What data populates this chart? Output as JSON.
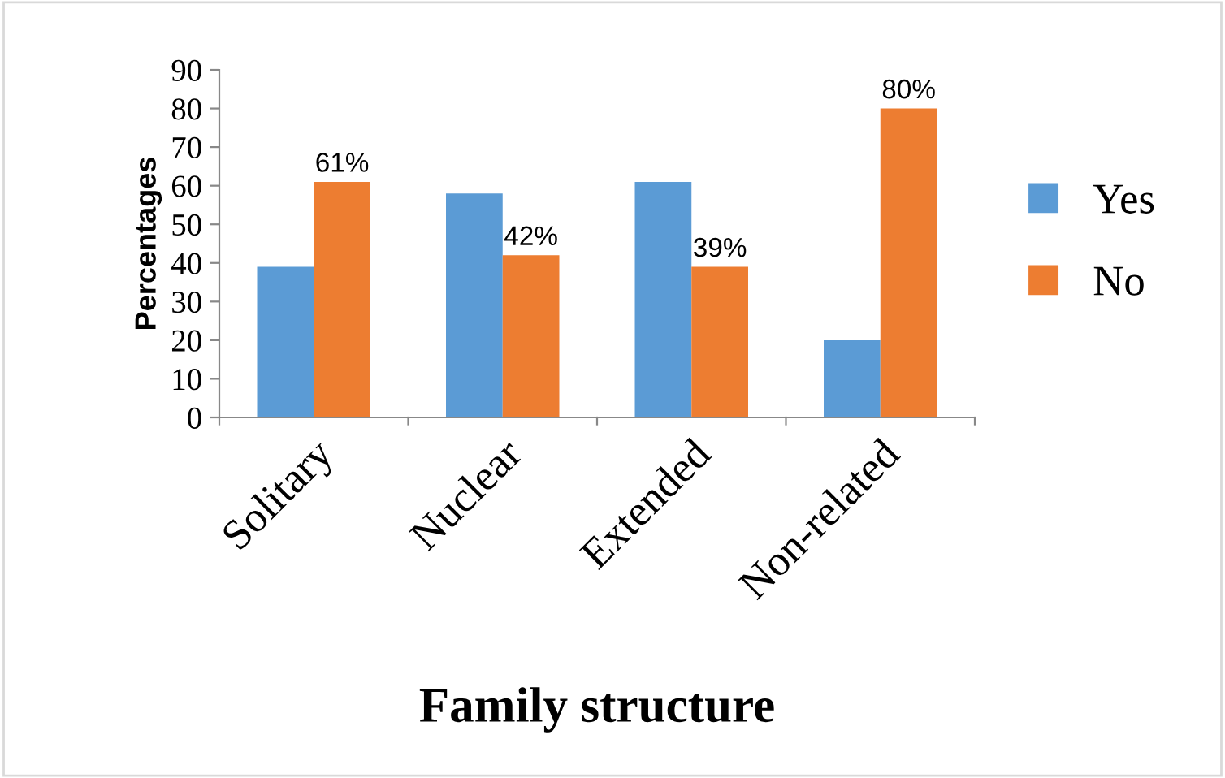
{
  "chart_data": {
    "type": "bar",
    "xlabel": "Family structure",
    "ylabel": "Percentages",
    "categories": [
      "Solitary",
      "Nuclear",
      "Extended",
      "Non-related"
    ],
    "series": [
      {
        "name": "Yes",
        "color": "#5b9bd5",
        "values": [
          39,
          58,
          61,
          20
        ]
      },
      {
        "name": "No",
        "color": "#ed7d31",
        "values": [
          61,
          42,
          39,
          80
        ],
        "value_labels": [
          "61%",
          "42%",
          "39%",
          "80%"
        ]
      }
    ],
    "ylim": [
      0,
      90
    ],
    "yticks": [
      0,
      10,
      20,
      30,
      40,
      50,
      60,
      70,
      80,
      90
    ],
    "grid": false,
    "legend": "right"
  }
}
